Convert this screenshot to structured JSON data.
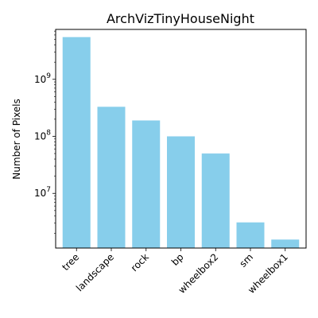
{
  "chart_data": {
    "type": "bar",
    "title": "ArchVizTinyHouseNight",
    "xlabel": "",
    "ylabel": "Number of Pixels",
    "yscale": "log",
    "ylim": [
      1100000,
      7500000000
    ],
    "bar_color": "#87ceeb",
    "categories": [
      "tree",
      "landscape",
      "rock",
      "bp",
      "wheelbox2",
      "sm",
      "wheelbox1"
    ],
    "values": [
      5500000000,
      330000000,
      190000000,
      100000000,
      50000000,
      3100000,
      1550000
    ],
    "y_major_ticks": [
      {
        "value": 10000000,
        "base": "10",
        "exp": "7"
      },
      {
        "value": 100000000,
        "base": "10",
        "exp": "8"
      },
      {
        "value": 1000000000,
        "base": "10",
        "exp": "9"
      }
    ],
    "grid": false,
    "legend": "none"
  }
}
